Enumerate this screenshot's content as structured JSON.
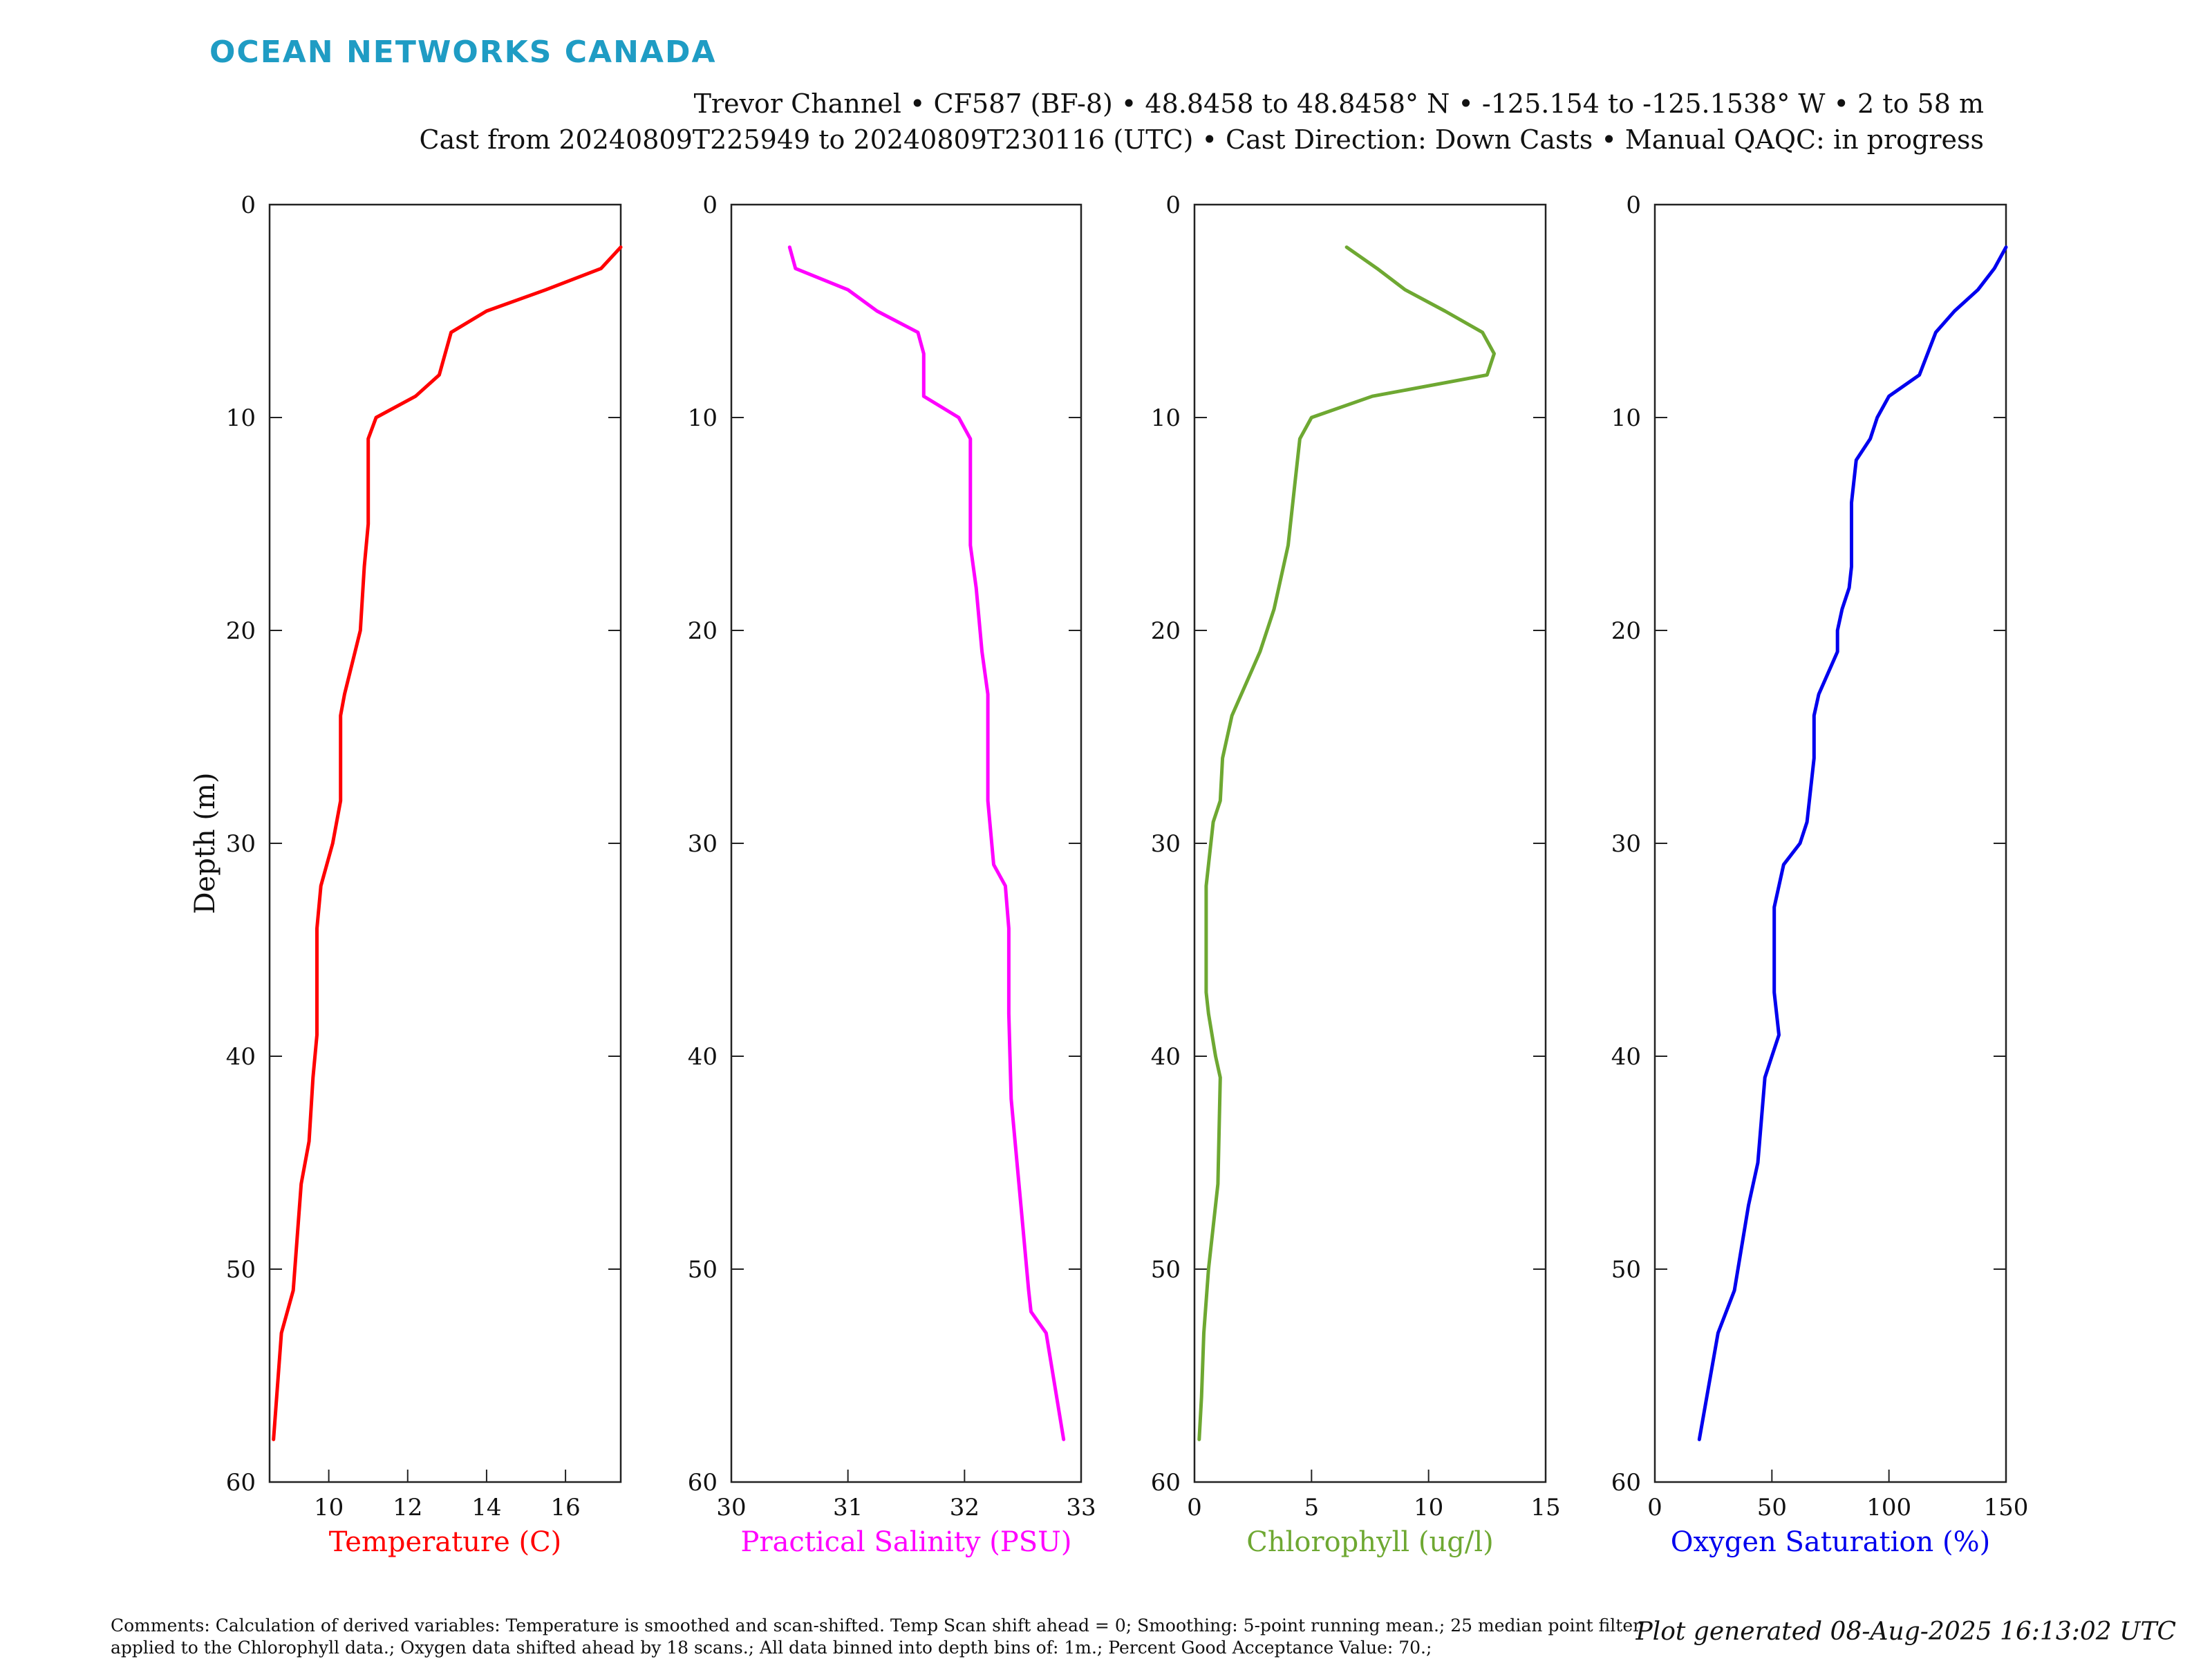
{
  "brand": "OCEAN NETWORKS CANADA",
  "header": {
    "line1": "Trevor Channel • CF587 (BF-8) • 48.8458 to 48.8458° N • -125.154 to -125.1538° W • 2 to 58 m",
    "line2": "Cast from 20240809T225949 to 20240809T230116 (UTC) • Cast Direction: Down Casts • Manual QAQC: in progress"
  },
  "footer": {
    "comments": "Comments: Calculation of derived variables: Temperature is smoothed and scan-shifted. Temp Scan shift ahead = 0; Smoothing: 5-point running mean.; 25 median point filter applied to the Chlorophyll data.; Oxygen data shifted ahead by 18 scans.; All data binned into depth bins of: 1m.; Percent Good Acceptance Value: 70.;",
    "generated": "Plot generated 08-Aug-2025 16:13:02 UTC"
  },
  "chart_data": [
    {
      "type": "line",
      "xlabel": "Temperature (C)",
      "ylabel": "Depth (m)",
      "color": "#ff0000",
      "xlim": [
        8.5,
        17.4
      ],
      "xticks": [
        10,
        12,
        14,
        16
      ],
      "ylim": [
        0,
        60
      ],
      "yticks": [
        0,
        10,
        20,
        30,
        40,
        50,
        60
      ],
      "y_reversed": true,
      "x": [
        17.4,
        16.9,
        15.5,
        14.0,
        13.1,
        12.8,
        12.2,
        11.2,
        11.0,
        11.0,
        11.0,
        10.9,
        10.8,
        10.4,
        10.3,
        10.3,
        10.1,
        9.8,
        9.7,
        9.7,
        9.6,
        9.5,
        9.3,
        9.1,
        8.8,
        8.6
      ],
      "y": [
        2,
        3,
        4,
        5,
        6,
        8,
        9,
        10,
        11,
        12,
        15,
        17,
        20,
        23,
        24,
        28,
        30,
        32,
        34,
        39,
        41,
        44,
        46,
        51,
        53,
        58
      ]
    },
    {
      "type": "line",
      "xlabel": "Practical Salinity (PSU)",
      "color": "#ff00ff",
      "xlim": [
        30,
        33
      ],
      "xticks": [
        30,
        31,
        32,
        33
      ],
      "ylim": [
        0,
        60
      ],
      "yticks": [
        0,
        10,
        20,
        30,
        40,
        50,
        60
      ],
      "y_reversed": true,
      "x": [
        30.5,
        30.55,
        31.0,
        31.25,
        31.6,
        31.65,
        31.65,
        31.95,
        32.05,
        32.05,
        32.05,
        32.1,
        32.15,
        32.2,
        32.2,
        32.25,
        32.35,
        32.38,
        32.38,
        32.4,
        32.5,
        32.55,
        32.57,
        32.7,
        32.85
      ],
      "y": [
        2,
        3,
        4,
        5,
        6,
        7,
        9,
        10,
        11,
        13,
        16,
        18,
        21,
        23,
        28,
        31,
        32,
        34,
        38,
        42,
        48,
        51,
        52,
        53,
        58
      ]
    },
    {
      "type": "line",
      "xlabel": "Chlorophyll (ug/l)",
      "color": "#6ea832",
      "xlim": [
        0,
        15
      ],
      "xticks": [
        0,
        5,
        10,
        15
      ],
      "ylim": [
        0,
        60
      ],
      "yticks": [
        0,
        10,
        20,
        30,
        40,
        50,
        60
      ],
      "y_reversed": true,
      "x": [
        6.5,
        7.8,
        9.0,
        10.7,
        12.3,
        12.8,
        12.5,
        7.6,
        5.0,
        4.5,
        4.3,
        4.0,
        3.4,
        2.8,
        2.4,
        1.6,
        1.2,
        1.1,
        0.8,
        0.5,
        0.5,
        0.6,
        0.9,
        1.1,
        1.0,
        0.8,
        0.6,
        0.4,
        0.3,
        0.2
      ],
      "y": [
        2,
        3,
        4,
        5,
        6,
        7,
        8,
        9,
        10,
        11,
        13,
        16,
        19,
        21,
        22,
        24,
        26,
        28,
        29,
        32,
        37,
        38,
        40,
        41,
        46,
        48,
        50,
        53,
        56,
        58
      ]
    },
    {
      "type": "line",
      "xlabel": "Oxygen Saturation (%)",
      "color": "#0000ee",
      "xlim": [
        0,
        150
      ],
      "xticks": [
        0,
        50,
        100,
        150
      ],
      "ylim": [
        0,
        60
      ],
      "yticks": [
        0,
        10,
        20,
        30,
        40,
        50,
        60
      ],
      "y_reversed": true,
      "x": [
        150,
        145,
        138,
        128,
        120,
        113,
        100,
        95,
        92,
        86,
        84,
        84,
        84,
        83,
        80,
        78,
        78,
        70,
        68,
        68,
        67,
        65,
        62,
        55,
        51,
        51,
        53,
        50,
        47,
        44,
        40,
        34,
        27,
        19
      ],
      "y": [
        2,
        3,
        4,
        5,
        6,
        8,
        9,
        10,
        11,
        12,
        14,
        16,
        17,
        18,
        19,
        20,
        21,
        23,
        24,
        26,
        27,
        29,
        30,
        31,
        33,
        37,
        39,
        40,
        41,
        45,
        47,
        51,
        53,
        58
      ]
    }
  ]
}
